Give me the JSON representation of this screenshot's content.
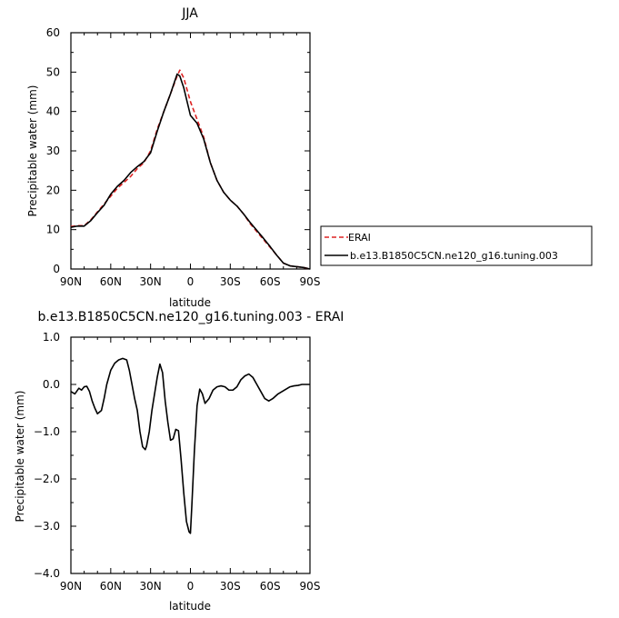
{
  "chart_data": [
    {
      "type": "line",
      "title": "JJA",
      "xlabel": "latitude",
      "ylabel": "Precipitable water (mm)",
      "xlim": [
        90,
        -90
      ],
      "ylim": [
        0,
        60
      ],
      "xticks": [
        90,
        60,
        30,
        0,
        -30,
        -60,
        -90
      ],
      "xtick_labels": [
        "90N",
        "60N",
        "30N",
        "0",
        "30S",
        "60S",
        "90S"
      ],
      "yticks": [
        0,
        10,
        20,
        30,
        40,
        50,
        60
      ],
      "ytick_labels": [
        "0",
        "10",
        "20",
        "30",
        "40",
        "50",
        "60"
      ],
      "legend_position": "right",
      "series": [
        {
          "name": "ERAI",
          "color": "#dd2222",
          "dash": "dashed",
          "x": [
            90,
            85,
            80,
            75,
            70,
            65,
            60,
            55,
            50,
            45,
            40,
            35,
            30,
            25,
            20,
            15,
            10,
            8,
            5,
            0,
            -5,
            -10,
            -15,
            -20,
            -25,
            -30,
            -35,
            -40,
            -45,
            -50,
            -55,
            -60,
            -65,
            -70,
            -75,
            -80,
            -85,
            -90
          ],
          "y": [
            10.8,
            11.0,
            11.0,
            12.5,
            14.5,
            16.5,
            18.5,
            20.5,
            22.0,
            23.5,
            25.5,
            27.0,
            30.0,
            35.5,
            40.0,
            44.5,
            49.0,
            50.5,
            48.5,
            42.5,
            38.0,
            33.5,
            27.0,
            22.5,
            19.5,
            17.5,
            16.0,
            14.0,
            11.5,
            9.5,
            7.5,
            5.5,
            3.5,
            1.5,
            0.8,
            0.6,
            0.4,
            0.0
          ]
        },
        {
          "name": "b.e13.B1850C5CN.ne120_g16.tuning.003",
          "color": "#000000",
          "dash": "solid",
          "x": [
            90,
            85,
            80,
            75,
            70,
            65,
            60,
            55,
            50,
            45,
            40,
            35,
            30,
            25,
            20,
            15,
            10,
            8,
            5,
            0,
            -5,
            -10,
            -15,
            -20,
            -25,
            -30,
            -35,
            -40,
            -45,
            -50,
            -55,
            -60,
            -65,
            -70,
            -75,
            -80,
            -85,
            -90
          ],
          "y": [
            10.6,
            10.9,
            10.9,
            12.3,
            14.3,
            16.2,
            19.0,
            21.0,
            22.5,
            24.5,
            26.0,
            27.3,
            29.5,
            35.0,
            40.0,
            44.5,
            49.5,
            49.0,
            46.0,
            39.0,
            37.0,
            33.0,
            27.0,
            22.5,
            19.5,
            17.5,
            16.0,
            14.0,
            11.8,
            9.8,
            7.8,
            5.7,
            3.5,
            1.5,
            0.8,
            0.6,
            0.4,
            0.0
          ]
        }
      ]
    },
    {
      "type": "line",
      "title": "b.e13.B1850C5CN.ne120_g16.tuning.003 - ERAI",
      "xlabel": "latitude",
      "ylabel": "Precipitable water (mm)",
      "xlim": [
        90,
        -90
      ],
      "ylim": [
        -4.0,
        1.0
      ],
      "xticks": [
        90,
        60,
        30,
        0,
        -30,
        -60,
        -90
      ],
      "xtick_labels": [
        "90N",
        "60N",
        "30N",
        "0",
        "30S",
        "60S",
        "90S"
      ],
      "yticks": [
        1.0,
        0.0,
        -1.0,
        -2.0,
        -3.0,
        -4.0
      ],
      "ytick_labels": [
        "1.0",
        "0.0",
        "−1.0",
        "−2.0",
        "−3.0",
        "−4.0"
      ],
      "series": [
        {
          "color": "#000000",
          "dash": "solid",
          "x": [
            90,
            87,
            84,
            82,
            80,
            78,
            76,
            74,
            72,
            70,
            67,
            65,
            63,
            60,
            57,
            54,
            51,
            48,
            46,
            44,
            42,
            40,
            38,
            36,
            34,
            33,
            31,
            29,
            27,
            25,
            23,
            21,
            19,
            17,
            15,
            13,
            11,
            9,
            7,
            5,
            3,
            1,
            0,
            -1,
            -3,
            -5,
            -7,
            -9,
            -11,
            -14,
            -17,
            -20,
            -23,
            -26,
            -29,
            -32,
            -35,
            -38,
            -41,
            -44,
            -47,
            -50,
            -53,
            -56,
            -59,
            -62,
            -64,
            -66,
            -69,
            -72,
            -75,
            -78,
            -81,
            -84,
            -87,
            -90
          ],
          "y": [
            -0.15,
            -0.2,
            -0.08,
            -0.12,
            -0.05,
            -0.04,
            -0.15,
            -0.35,
            -0.5,
            -0.62,
            -0.55,
            -0.3,
            0.0,
            0.3,
            0.45,
            0.52,
            0.55,
            0.52,
            0.3,
            0.0,
            -0.3,
            -0.55,
            -1.0,
            -1.32,
            -1.38,
            -1.3,
            -1.0,
            -0.55,
            -0.2,
            0.15,
            0.43,
            0.25,
            -0.35,
            -0.8,
            -1.18,
            -1.15,
            -0.95,
            -0.98,
            -1.6,
            -2.3,
            -2.9,
            -3.12,
            -3.15,
            -2.6,
            -1.4,
            -0.45,
            -0.1,
            -0.2,
            -0.4,
            -0.3,
            -0.12,
            -0.05,
            -0.03,
            -0.05,
            -0.12,
            -0.12,
            -0.05,
            0.1,
            0.18,
            0.22,
            0.15,
            0.0,
            -0.15,
            -0.3,
            -0.35,
            -0.3,
            -0.25,
            -0.2,
            -0.15,
            -0.1,
            -0.05,
            -0.03,
            -0.02,
            0.0,
            0.0,
            0.0
          ]
        }
      ]
    }
  ]
}
